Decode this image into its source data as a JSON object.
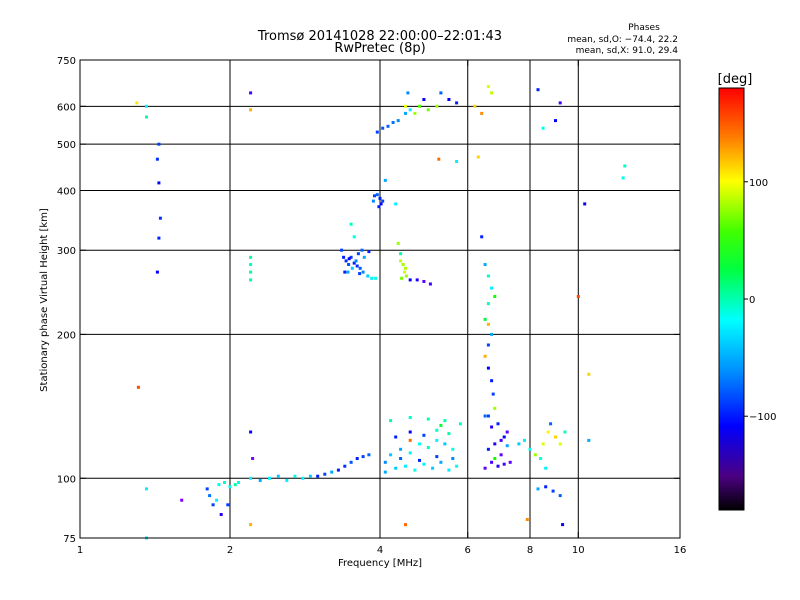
{
  "chart_data": {
    "type": "scatter",
    "title_line1": "Tromsø 20141028 22:00:00–22:01:43",
    "title_line2": "RwPretec (8p)",
    "side_title": "Phases",
    "side_line1": "mean, sd,O: −74.4, 22.2",
    "side_line2": "mean, sd,X:  91.0, 29.4",
    "xlabel": "Frequency [MHz]",
    "ylabel": "Stationary phase Virtual Height [km]",
    "x_scale": "log2",
    "y_scale": "log",
    "xlim": [
      1,
      16
    ],
    "ylim": [
      75,
      750
    ],
    "x_ticks": [
      {
        "v": 1,
        "label": "1"
      },
      {
        "v": 2,
        "label": "2"
      },
      {
        "v": 4,
        "label": "4"
      },
      {
        "v": 6,
        "label": "6"
      },
      {
        "v": 8,
        "label": "8"
      },
      {
        "v": 10,
        "label": "10"
      },
      {
        "v": 16,
        "label": "16"
      }
    ],
    "x_grid": [
      2,
      4,
      6,
      8,
      10
    ],
    "y_ticks": [
      {
        "v": 75,
        "label": "75"
      },
      {
        "v": 100,
        "label": "100"
      },
      {
        "v": 200,
        "label": "200"
      },
      {
        "v": 300,
        "label": "300"
      },
      {
        "v": 400,
        "label": "400"
      },
      {
        "v": 500,
        "label": "500"
      },
      {
        "v": 600,
        "label": "600"
      },
      {
        "v": 750,
        "label": "750"
      }
    ],
    "y_grid": [
      100,
      200,
      300,
      400,
      500,
      600
    ],
    "colorbar": {
      "unit": "[deg]",
      "range": [
        -180,
        180
      ],
      "ticks": [
        {
          "v": 100,
          "label": "100"
        },
        {
          "v": 0,
          "label": "0"
        },
        {
          "v": -100,
          "label": "−100"
        }
      ]
    },
    "points": [
      [
        1.3,
        610,
        115
      ],
      [
        1.36,
        600,
        -40
      ],
      [
        1.36,
        570,
        -10
      ],
      [
        1.44,
        500,
        -90
      ],
      [
        1.43,
        465,
        -95
      ],
      [
        1.44,
        415,
        -105
      ],
      [
        1.45,
        350,
        -95
      ],
      [
        1.44,
        318,
        -100
      ],
      [
        1.43,
        270,
        -110
      ],
      [
        1.31,
        155,
        160
      ],
      [
        1.36,
        95,
        -40
      ],
      [
        1.36,
        75,
        -40
      ],
      [
        1.6,
        90,
        -150
      ],
      [
        1.8,
        95,
        -90
      ],
      [
        1.82,
        92,
        -75
      ],
      [
        1.85,
        88,
        -90
      ],
      [
        1.88,
        90,
        -40
      ],
      [
        1.9,
        97,
        -30
      ],
      [
        1.95,
        98,
        -20
      ],
      [
        2.0,
        96,
        -30
      ],
      [
        2.05,
        97,
        -10
      ],
      [
        2.08,
        98,
        -30
      ],
      [
        1.92,
        84,
        -120
      ],
      [
        1.98,
        88,
        -90
      ],
      [
        2.2,
        100,
        -40
      ],
      [
        2.3,
        99,
        -60
      ],
      [
        2.4,
        100,
        -40
      ],
      [
        2.5,
        101,
        -50
      ],
      [
        2.6,
        99,
        -40
      ],
      [
        2.7,
        101,
        -30
      ],
      [
        2.8,
        100,
        -40
      ],
      [
        2.9,
        101,
        -50
      ],
      [
        3.0,
        101,
        -100
      ],
      [
        3.1,
        102,
        -90
      ],
      [
        3.2,
        103,
        -60
      ],
      [
        3.3,
        104,
        -100
      ],
      [
        3.4,
        106,
        -95
      ],
      [
        3.5,
        108,
        -85
      ],
      [
        3.6,
        110,
        -100
      ],
      [
        3.7,
        111,
        -90
      ],
      [
        3.8,
        112,
        -80
      ],
      [
        2.2,
        640,
        -130
      ],
      [
        2.2,
        590,
        130
      ],
      [
        2.2,
        290,
        -10
      ],
      [
        2.2,
        280,
        -20
      ],
      [
        2.2,
        270,
        -10
      ],
      [
        2.2,
        260,
        -10
      ],
      [
        2.2,
        125,
        -110
      ],
      [
        2.22,
        110,
        -150
      ],
      [
        2.2,
        80,
        130
      ],
      [
        3.35,
        300,
        -90
      ],
      [
        3.38,
        290,
        -100
      ],
      [
        3.42,
        285,
        -95
      ],
      [
        3.46,
        280,
        -85
      ],
      [
        3.5,
        290,
        -90
      ],
      [
        3.55,
        282,
        -100
      ],
      [
        3.6,
        278,
        -95
      ],
      [
        3.65,
        275,
        -80
      ],
      [
        3.7,
        270,
        -70
      ],
      [
        3.78,
        265,
        -50
      ],
      [
        3.85,
        262,
        -40
      ],
      [
        3.92,
        262,
        -30
      ],
      [
        3.45,
        270,
        -60
      ],
      [
        3.52,
        275,
        -50
      ],
      [
        3.58,
        285,
        -70
      ],
      [
        3.62,
        295,
        -90
      ],
      [
        3.68,
        300,
        -80
      ],
      [
        3.72,
        290,
        -60
      ],
      [
        3.8,
        298,
        -100
      ],
      [
        3.55,
        320,
        -30
      ],
      [
        3.5,
        340,
        -20
      ],
      [
        3.4,
        270,
        -100
      ],
      [
        3.47,
        288,
        -110
      ],
      [
        3.64,
        268,
        -90
      ],
      [
        3.9,
        390,
        -90
      ],
      [
        3.95,
        392,
        -80
      ],
      [
        4.0,
        385,
        -100
      ],
      [
        4.02,
        375,
        -110
      ],
      [
        3.88,
        380,
        -70
      ],
      [
        3.98,
        370,
        -100
      ],
      [
        4.05,
        380,
        -90
      ],
      [
        4.1,
        420,
        -60
      ],
      [
        4.3,
        375,
        -40
      ],
      [
        4.4,
        285,
        90
      ],
      [
        4.45,
        280,
        80
      ],
      [
        4.5,
        275,
        85
      ],
      [
        4.48,
        270,
        95
      ],
      [
        4.52,
        265,
        80
      ],
      [
        4.42,
        262,
        70
      ],
      [
        4.4,
        295,
        -10
      ],
      [
        4.35,
        310,
        80
      ],
      [
        4.6,
        260,
        -110
      ],
      [
        4.75,
        260,
        -120
      ],
      [
        4.9,
        258,
        -140
      ],
      [
        5.05,
        255,
        -130
      ],
      [
        3.95,
        530,
        -90
      ],
      [
        4.05,
        540,
        -85
      ],
      [
        4.15,
        545,
        -80
      ],
      [
        4.25,
        555,
        -75
      ],
      [
        4.35,
        560,
        -70
      ],
      [
        4.5,
        580,
        -60
      ],
      [
        4.6,
        590,
        -40
      ],
      [
        4.8,
        600,
        60
      ],
      [
        5.0,
        590,
        70
      ],
      [
        5.2,
        600,
        80
      ],
      [
        4.55,
        640,
        -70
      ],
      [
        5.3,
        640,
        -80
      ],
      [
        5.5,
        620,
        -110
      ],
      [
        4.9,
        620,
        -110
      ],
      [
        5.7,
        610,
        -100
      ],
      [
        5.25,
        465,
        150
      ],
      [
        5.7,
        460,
        -40
      ],
      [
        4.5,
        600,
        100
      ],
      [
        4.7,
        580,
        80
      ],
      [
        4.1,
        103,
        -60
      ],
      [
        4.3,
        105,
        -50
      ],
      [
        4.5,
        106,
        -40
      ],
      [
        4.7,
        104,
        -30
      ],
      [
        4.9,
        107,
        -40
      ],
      [
        5.1,
        105,
        -50
      ],
      [
        5.3,
        108,
        -60
      ],
      [
        5.5,
        104,
        -40
      ],
      [
        5.7,
        106,
        -30
      ],
      [
        4.2,
        112,
        -50
      ],
      [
        4.4,
        115,
        -60
      ],
      [
        4.6,
        113,
        -40
      ],
      [
        4.8,
        118,
        -30
      ],
      [
        5.0,
        116,
        -20
      ],
      [
        5.2,
        120,
        -40
      ],
      [
        5.4,
        118,
        -50
      ],
      [
        5.6,
        115,
        -30
      ],
      [
        4.3,
        122,
        -100
      ],
      [
        4.6,
        125,
        -110
      ],
      [
        4.9,
        123,
        -90
      ],
      [
        5.2,
        126,
        -20
      ],
      [
        5.5,
        124,
        -10
      ],
      [
        4.2,
        132,
        -10
      ],
      [
        4.6,
        134,
        -20
      ],
      [
        5.0,
        133,
        -15
      ],
      [
        5.4,
        132,
        -10
      ],
      [
        5.8,
        130,
        -20
      ],
      [
        4.1,
        108,
        -70
      ],
      [
        4.4,
        110,
        -80
      ],
      [
        4.8,
        109,
        -100
      ],
      [
        5.2,
        111,
        -90
      ],
      [
        5.6,
        110,
        -70
      ],
      [
        4.6,
        120,
        150
      ],
      [
        5.3,
        129,
        20
      ],
      [
        4.5,
        80,
        150
      ],
      [
        6.2,
        600,
        120
      ],
      [
        6.4,
        580,
        140
      ],
      [
        6.6,
        660,
        100
      ],
      [
        6.7,
        640,
        90
      ],
      [
        6.3,
        470,
        120
      ],
      [
        6.4,
        320,
        -100
      ],
      [
        6.5,
        280,
        -60
      ],
      [
        6.6,
        265,
        -20
      ],
      [
        6.7,
        250,
        -40
      ],
      [
        6.8,
        240,
        40
      ],
      [
        6.6,
        232,
        -20
      ],
      [
        6.5,
        215,
        20
      ],
      [
        6.6,
        210,
        130
      ],
      [
        6.7,
        200,
        -60
      ],
      [
        6.6,
        190,
        -90
      ],
      [
        6.5,
        180,
        130
      ],
      [
        6.6,
        170,
        -110
      ],
      [
        6.7,
        160,
        -100
      ],
      [
        6.75,
        150,
        -90
      ],
      [
        6.8,
        140,
        80
      ],
      [
        6.5,
        135,
        -80
      ],
      [
        6.5,
        105,
        -140
      ],
      [
        6.7,
        108,
        -130
      ],
      [
        6.9,
        106,
        -120
      ],
      [
        7.1,
        107,
        -130
      ],
      [
        7.3,
        108,
        -140
      ],
      [
        6.6,
        115,
        -100
      ],
      [
        6.8,
        118,
        -120
      ],
      [
        7.0,
        120,
        -130
      ],
      [
        7.2,
        125,
        -140
      ],
      [
        6.7,
        128,
        -120
      ],
      [
        6.9,
        130,
        -100
      ],
      [
        7.1,
        122,
        -110
      ],
      [
        6.6,
        135,
        -90
      ],
      [
        7.0,
        112,
        -140
      ],
      [
        7.2,
        117,
        -60
      ],
      [
        6.8,
        110,
        40
      ],
      [
        7.6,
        118,
        -50
      ],
      [
        7.8,
        120,
        -40
      ],
      [
        8.0,
        115,
        -30
      ],
      [
        8.2,
        112,
        80
      ],
      [
        8.5,
        118,
        100
      ],
      [
        8.7,
        125,
        110
      ],
      [
        9.0,
        122,
        120
      ],
      [
        9.2,
        118,
        100
      ],
      [
        8.4,
        110,
        -30
      ],
      [
        8.6,
        105,
        -40
      ],
      [
        8.8,
        130,
        -80
      ],
      [
        9.4,
        125,
        -20
      ],
      [
        8.3,
        95,
        -60
      ],
      [
        8.6,
        96,
        -100
      ],
      [
        8.9,
        94,
        -90
      ],
      [
        9.2,
        92,
        -80
      ],
      [
        9.3,
        80,
        -110
      ],
      [
        8.3,
        650,
        -100
      ],
      [
        9.2,
        610,
        -130
      ],
      [
        8.5,
        540,
        -30
      ],
      [
        9.0,
        560,
        -110
      ],
      [
        10.3,
        375,
        -110
      ],
      [
        12.4,
        450,
        -20
      ],
      [
        12.3,
        425,
        -30
      ],
      [
        10.0,
        240,
        160
      ],
      [
        7.9,
        82,
        140
      ],
      [
        10.5,
        165,
        120
      ],
      [
        10.5,
        120,
        -60
      ]
    ]
  }
}
